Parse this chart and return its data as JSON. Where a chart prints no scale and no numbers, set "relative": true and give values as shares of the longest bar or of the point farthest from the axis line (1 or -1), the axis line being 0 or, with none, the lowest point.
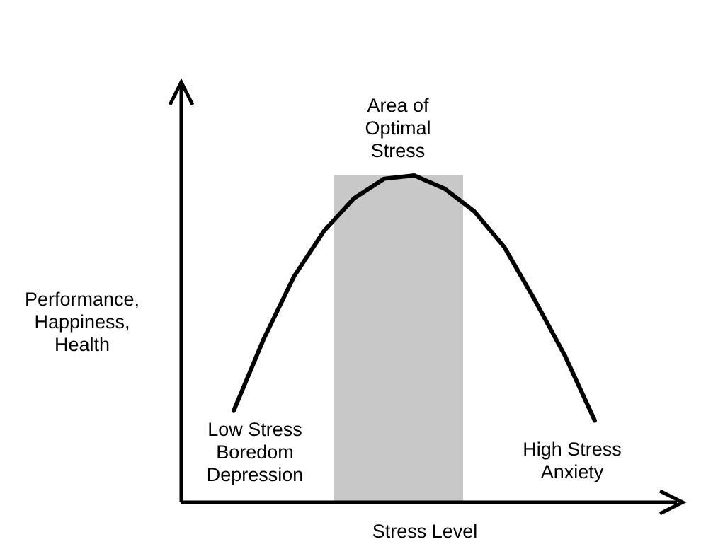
{
  "chart_data": {
    "type": "line",
    "relative": true,
    "xlabel": "Stress Level",
    "ylabel": "Performance,\nHappiness,\nHealth",
    "categories": [
      null,
      null,
      null,
      null,
      null,
      null,
      null,
      null,
      null,
      null,
      null,
      null,
      null
    ],
    "series": [
      {
        "color": "#000000",
        "values": [
          0.28,
          0.5,
          0.69,
          0.83,
          0.93,
          0.99,
          1,
          0.96,
          0.89,
          0.78,
          0.62,
          0.45,
          0.25
        ]
      }
    ],
    "annotations": [
      "Area of\nOptimal\nStress",
      "Low Stress\nBoredom\nDepression",
      "High Stress\nAnxiety"
    ],
    "marker": "none",
    "line_style": "solid"
  }
}
